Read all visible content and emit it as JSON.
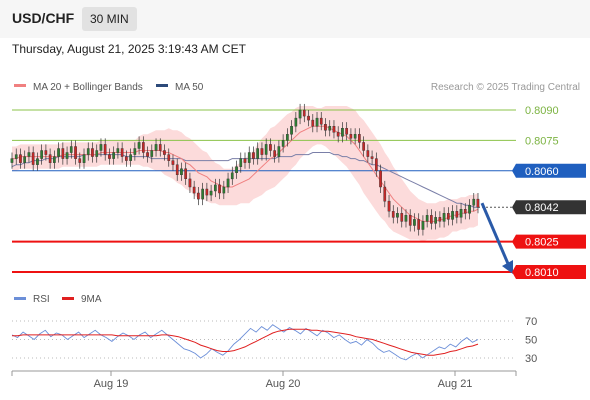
{
  "header": {
    "symbol": "USD/CHF",
    "timeframe": "30 MIN",
    "timestamp": "Thursday, August 21, 2025 3:19:43 AM CET"
  },
  "colors": {
    "candle_up": "#2e7d32",
    "candle_down": "#c62828",
    "ma20": "#f08080",
    "bollinger_fill": "#fbd5d5",
    "ma50": "#7a7fa8",
    "support": "#ee1111",
    "resistance": "#8bc34a",
    "pivot": "#1f5fbf",
    "arrow": "#2a5aa8",
    "rsi": "#6c8fd8",
    "rsi_ma": "#e02020"
  },
  "chart_data": [
    {
      "type": "candlestick",
      "title": "",
      "legend": [
        {
          "name": "MA 20 + Bollinger Bands",
          "icon": "salmon-line"
        },
        {
          "name": "MA 50",
          "icon": "navy-line"
        }
      ],
      "legend_placement": "top-left",
      "watermark": "Research © 2025 Trading Central",
      "x_ticks": [
        "Aug 19",
        "Aug 20",
        "Aug 21"
      ],
      "ylim": [
        0.8,
        0.81
      ],
      "price_levels": [
        {
          "label": "0.8090",
          "value": 0.809,
          "kind": "resistance"
        },
        {
          "label": "0.8075",
          "value": 0.8075,
          "kind": "resistance"
        },
        {
          "label": "0.8060",
          "value": 0.806,
          "kind": "pivot"
        },
        {
          "label": "0.8042",
          "value": 0.8042,
          "kind": "last"
        },
        {
          "label": "0.8025",
          "value": 0.8025,
          "kind": "support"
        },
        {
          "label": "0.8010",
          "value": 0.801,
          "kind": "support"
        }
      ],
      "forecast": {
        "direction": "down",
        "from": 0.8044,
        "to": 0.801
      },
      "closes": [
        0.8066,
        0.8068,
        0.8064,
        0.8067,
        0.8069,
        0.8063,
        0.8066,
        0.807,
        0.8068,
        0.8064,
        0.8067,
        0.8071,
        0.8066,
        0.8069,
        0.8072,
        0.8066,
        0.8064,
        0.8068,
        0.8071,
        0.8067,
        0.807,
        0.8073,
        0.8068,
        0.8066,
        0.8069,
        0.8071,
        0.8067,
        0.8065,
        0.8068,
        0.8071,
        0.8074,
        0.8069,
        0.8067,
        0.807,
        0.8073,
        0.807,
        0.8068,
        0.8065,
        0.8063,
        0.8058,
        0.8061,
        0.8056,
        0.8052,
        0.8049,
        0.8046,
        0.8051,
        0.8048,
        0.805,
        0.8053,
        0.8049,
        0.8052,
        0.8056,
        0.8059,
        0.8062,
        0.8066,
        0.8064,
        0.8069,
        0.8066,
        0.8071,
        0.8068,
        0.8073,
        0.807,
        0.8067,
        0.8072,
        0.8075,
        0.8078,
        0.8082,
        0.8086,
        0.809,
        0.8087,
        0.8085,
        0.8082,
        0.8086,
        0.8083,
        0.808,
        0.8082,
        0.8079,
        0.8077,
        0.8081,
        0.8078,
        0.8076,
        0.8078,
        0.8074,
        0.807,
        0.8067,
        0.8066,
        0.806,
        0.8052,
        0.8045,
        0.804,
        0.8037,
        0.8039,
        0.8035,
        0.8038,
        0.8033,
        0.8036,
        0.8031,
        0.8035,
        0.8038,
        0.8034,
        0.8037,
        0.8035,
        0.8039,
        0.8036,
        0.804,
        0.8037,
        0.8041,
        0.8039,
        0.8043,
        0.8046,
        0.8042
      ],
      "ma20": [
        0.8066,
        0.8066,
        0.8067,
        0.8067,
        0.8067,
        0.8067,
        0.8067,
        0.8067,
        0.8067,
        0.8067,
        0.8067,
        0.8067,
        0.8068,
        0.8068,
        0.8068,
        0.8068,
        0.8068,
        0.8068,
        0.8068,
        0.8068,
        0.8068,
        0.8069,
        0.8069,
        0.8069,
        0.8069,
        0.8069,
        0.8069,
        0.8069,
        0.8069,
        0.8069,
        0.807,
        0.807,
        0.807,
        0.807,
        0.807,
        0.807,
        0.8069,
        0.8069,
        0.8068,
        0.8067,
        0.8066,
        0.8064,
        0.8063,
        0.8061,
        0.8059,
        0.8058,
        0.8057,
        0.8055,
        0.8054,
        0.8053,
        0.8052,
        0.8052,
        0.8052,
        0.8053,
        0.8054,
        0.8055,
        0.8056,
        0.8058,
        0.806,
        0.8062,
        0.8064,
        0.8066,
        0.8067,
        0.8069,
        0.8071,
        0.8073,
        0.8075,
        0.8077,
        0.8079,
        0.808,
        0.8081,
        0.8082,
        0.8082,
        0.8082,
        0.8082,
        0.8081,
        0.808,
        0.8079,
        0.8078,
        0.8077,
        0.8075,
        0.8073,
        0.807,
        0.8067,
        0.8064,
        0.8061,
        0.8058,
        0.8055,
        0.8052,
        0.8049,
        0.8046,
        0.8044,
        0.8042,
        0.804,
        0.8038,
        0.8037,
        0.8036,
        0.8035,
        0.8035,
        0.8035,
        0.8035,
        0.8036,
        0.8036,
        0.8037,
        0.8038,
        0.8038,
        0.8039,
        0.8039,
        0.804,
        0.804,
        0.8041
      ],
      "ma50": [
        0.8062,
        0.8063,
        0.8063,
        0.8064,
        0.8064,
        0.8065,
        0.8065,
        0.8065,
        0.8066,
        0.8066,
        0.8066,
        0.8067,
        0.8067,
        0.8067,
        0.8067,
        0.8067,
        0.8067,
        0.8068,
        0.8068,
        0.8068,
        0.8068,
        0.8068,
        0.8068,
        0.8068,
        0.8068,
        0.8068,
        0.8068,
        0.8067,
        0.8067,
        0.8067,
        0.8067,
        0.8067,
        0.8067,
        0.8066,
        0.8066,
        0.8066,
        0.8066,
        0.8066,
        0.8066,
        0.8066,
        0.8066,
        0.8065,
        0.8065,
        0.8065,
        0.8065,
        0.8065,
        0.8065,
        0.8065,
        0.8065,
        0.8065,
        0.8065,
        0.8065,
        0.8066,
        0.8066,
        0.8066,
        0.8066,
        0.8066,
        0.8066,
        0.8066,
        0.8066,
        0.8066,
        0.8066,
        0.8066,
        0.8067,
        0.8067,
        0.8067,
        0.8067,
        0.8068,
        0.8068,
        0.8068,
        0.8068,
        0.8069,
        0.8069,
        0.8069,
        0.8069,
        0.8069,
        0.8068,
        0.8068,
        0.8067,
        0.8067,
        0.8066,
        0.8066,
        0.8065,
        0.8065,
        0.8064,
        0.8063,
        0.8063,
        0.8062,
        0.8061,
        0.806,
        0.8059,
        0.8058,
        0.8057,
        0.8056,
        0.8055,
        0.8054,
        0.8053,
        0.8052,
        0.8051,
        0.805,
        0.8049,
        0.8048,
        0.8047,
        0.8046,
        0.8045,
        0.8044,
        0.8044,
        0.8043,
        0.8043,
        0.8042,
        0.8042
      ],
      "bollinger_halfwidth": [
        0.0006,
        0.0006,
        0.0006,
        0.0006,
        0.0006,
        0.0006,
        0.0006,
        0.0006,
        0.0006,
        0.0006,
        0.0006,
        0.0006,
        0.0006,
        0.0006,
        0.0006,
        0.0006,
        0.0006,
        0.0006,
        0.0006,
        0.0006,
        0.0006,
        0.0006,
        0.0006,
        0.0006,
        0.0006,
        0.0006,
        0.0006,
        0.0006,
        0.0006,
        0.0006,
        0.0007,
        0.0008,
        0.0008,
        0.0009,
        0.001,
        0.001,
        0.0011,
        0.0012,
        0.0012,
        0.0013,
        0.0013,
        0.0013,
        0.0013,
        0.0013,
        0.0013,
        0.0012,
        0.0012,
        0.0011,
        0.001,
        0.001,
        0.0009,
        0.0009,
        0.0009,
        0.001,
        0.001,
        0.0011,
        0.0012,
        0.0012,
        0.0013,
        0.0014,
        0.0014,
        0.0015,
        0.0015,
        0.0015,
        0.0015,
        0.0015,
        0.0014,
        0.0014,
        0.0013,
        0.0012,
        0.0011,
        0.001,
        0.0009,
        0.0009,
        0.001,
        0.0011,
        0.0012,
        0.0013,
        0.0014,
        0.0015,
        0.0016,
        0.0017,
        0.0017,
        0.0018,
        0.0018,
        0.0018,
        0.0018,
        0.0018,
        0.0017,
        0.0017,
        0.0016,
        0.0015,
        0.0014,
        0.0013,
        0.0012,
        0.0011,
        0.001,
        0.001,
        0.0009,
        0.0009,
        0.0009,
        0.0009,
        0.0009,
        0.0009,
        0.0008,
        0.0008,
        0.0008,
        0.0008,
        0.0008,
        0.0008,
        0.0008
      ]
    },
    {
      "type": "line",
      "title": "",
      "legend": [
        {
          "name": "RSI",
          "icon": "blue-line"
        },
        {
          "name": "9MA",
          "icon": "red-line"
        }
      ],
      "legend_placement": "top-left",
      "ylim": [
        20,
        80
      ],
      "y_ticks": [
        "70",
        "50",
        "30"
      ],
      "series": [
        {
          "name": "RSI",
          "values": [
            55,
            52,
            58,
            54,
            50,
            56,
            60,
            53,
            57,
            55,
            50,
            54,
            58,
            52,
            56,
            60,
            55,
            52,
            48,
            53,
            57,
            54,
            50,
            55,
            58,
            52,
            56,
            60,
            55,
            50,
            45,
            40,
            38,
            35,
            30,
            34,
            40,
            36,
            33,
            38,
            45,
            50,
            56,
            62,
            58,
            64,
            60,
            66,
            62,
            58,
            63,
            60,
            56,
            62,
            58,
            54,
            60,
            57,
            52,
            55,
            50,
            46,
            48,
            44,
            50,
            46,
            40,
            36,
            38,
            34,
            30,
            28,
            32,
            35,
            30,
            34,
            38,
            42,
            40,
            45,
            42,
            48,
            52,
            47,
            50
          ]
        },
        {
          "name": "9MA",
          "values": [
            54,
            54,
            55,
            55,
            55,
            55,
            55,
            55,
            55,
            55,
            55,
            55,
            55,
            55,
            55,
            55,
            55,
            55,
            55,
            54,
            54,
            54,
            54,
            54,
            54,
            54,
            54,
            55,
            55,
            54,
            53,
            51,
            49,
            47,
            44,
            42,
            40,
            38,
            37,
            37,
            38,
            40,
            42,
            45,
            48,
            51,
            54,
            57,
            59,
            60,
            61,
            61,
            61,
            61,
            60,
            60,
            59,
            59,
            58,
            57,
            56,
            55,
            53,
            52,
            51,
            50,
            48,
            46,
            44,
            42,
            40,
            38,
            36,
            35,
            34,
            33,
            33,
            34,
            35,
            37,
            38,
            40,
            42,
            43,
            45
          ]
        }
      ]
    }
  ]
}
